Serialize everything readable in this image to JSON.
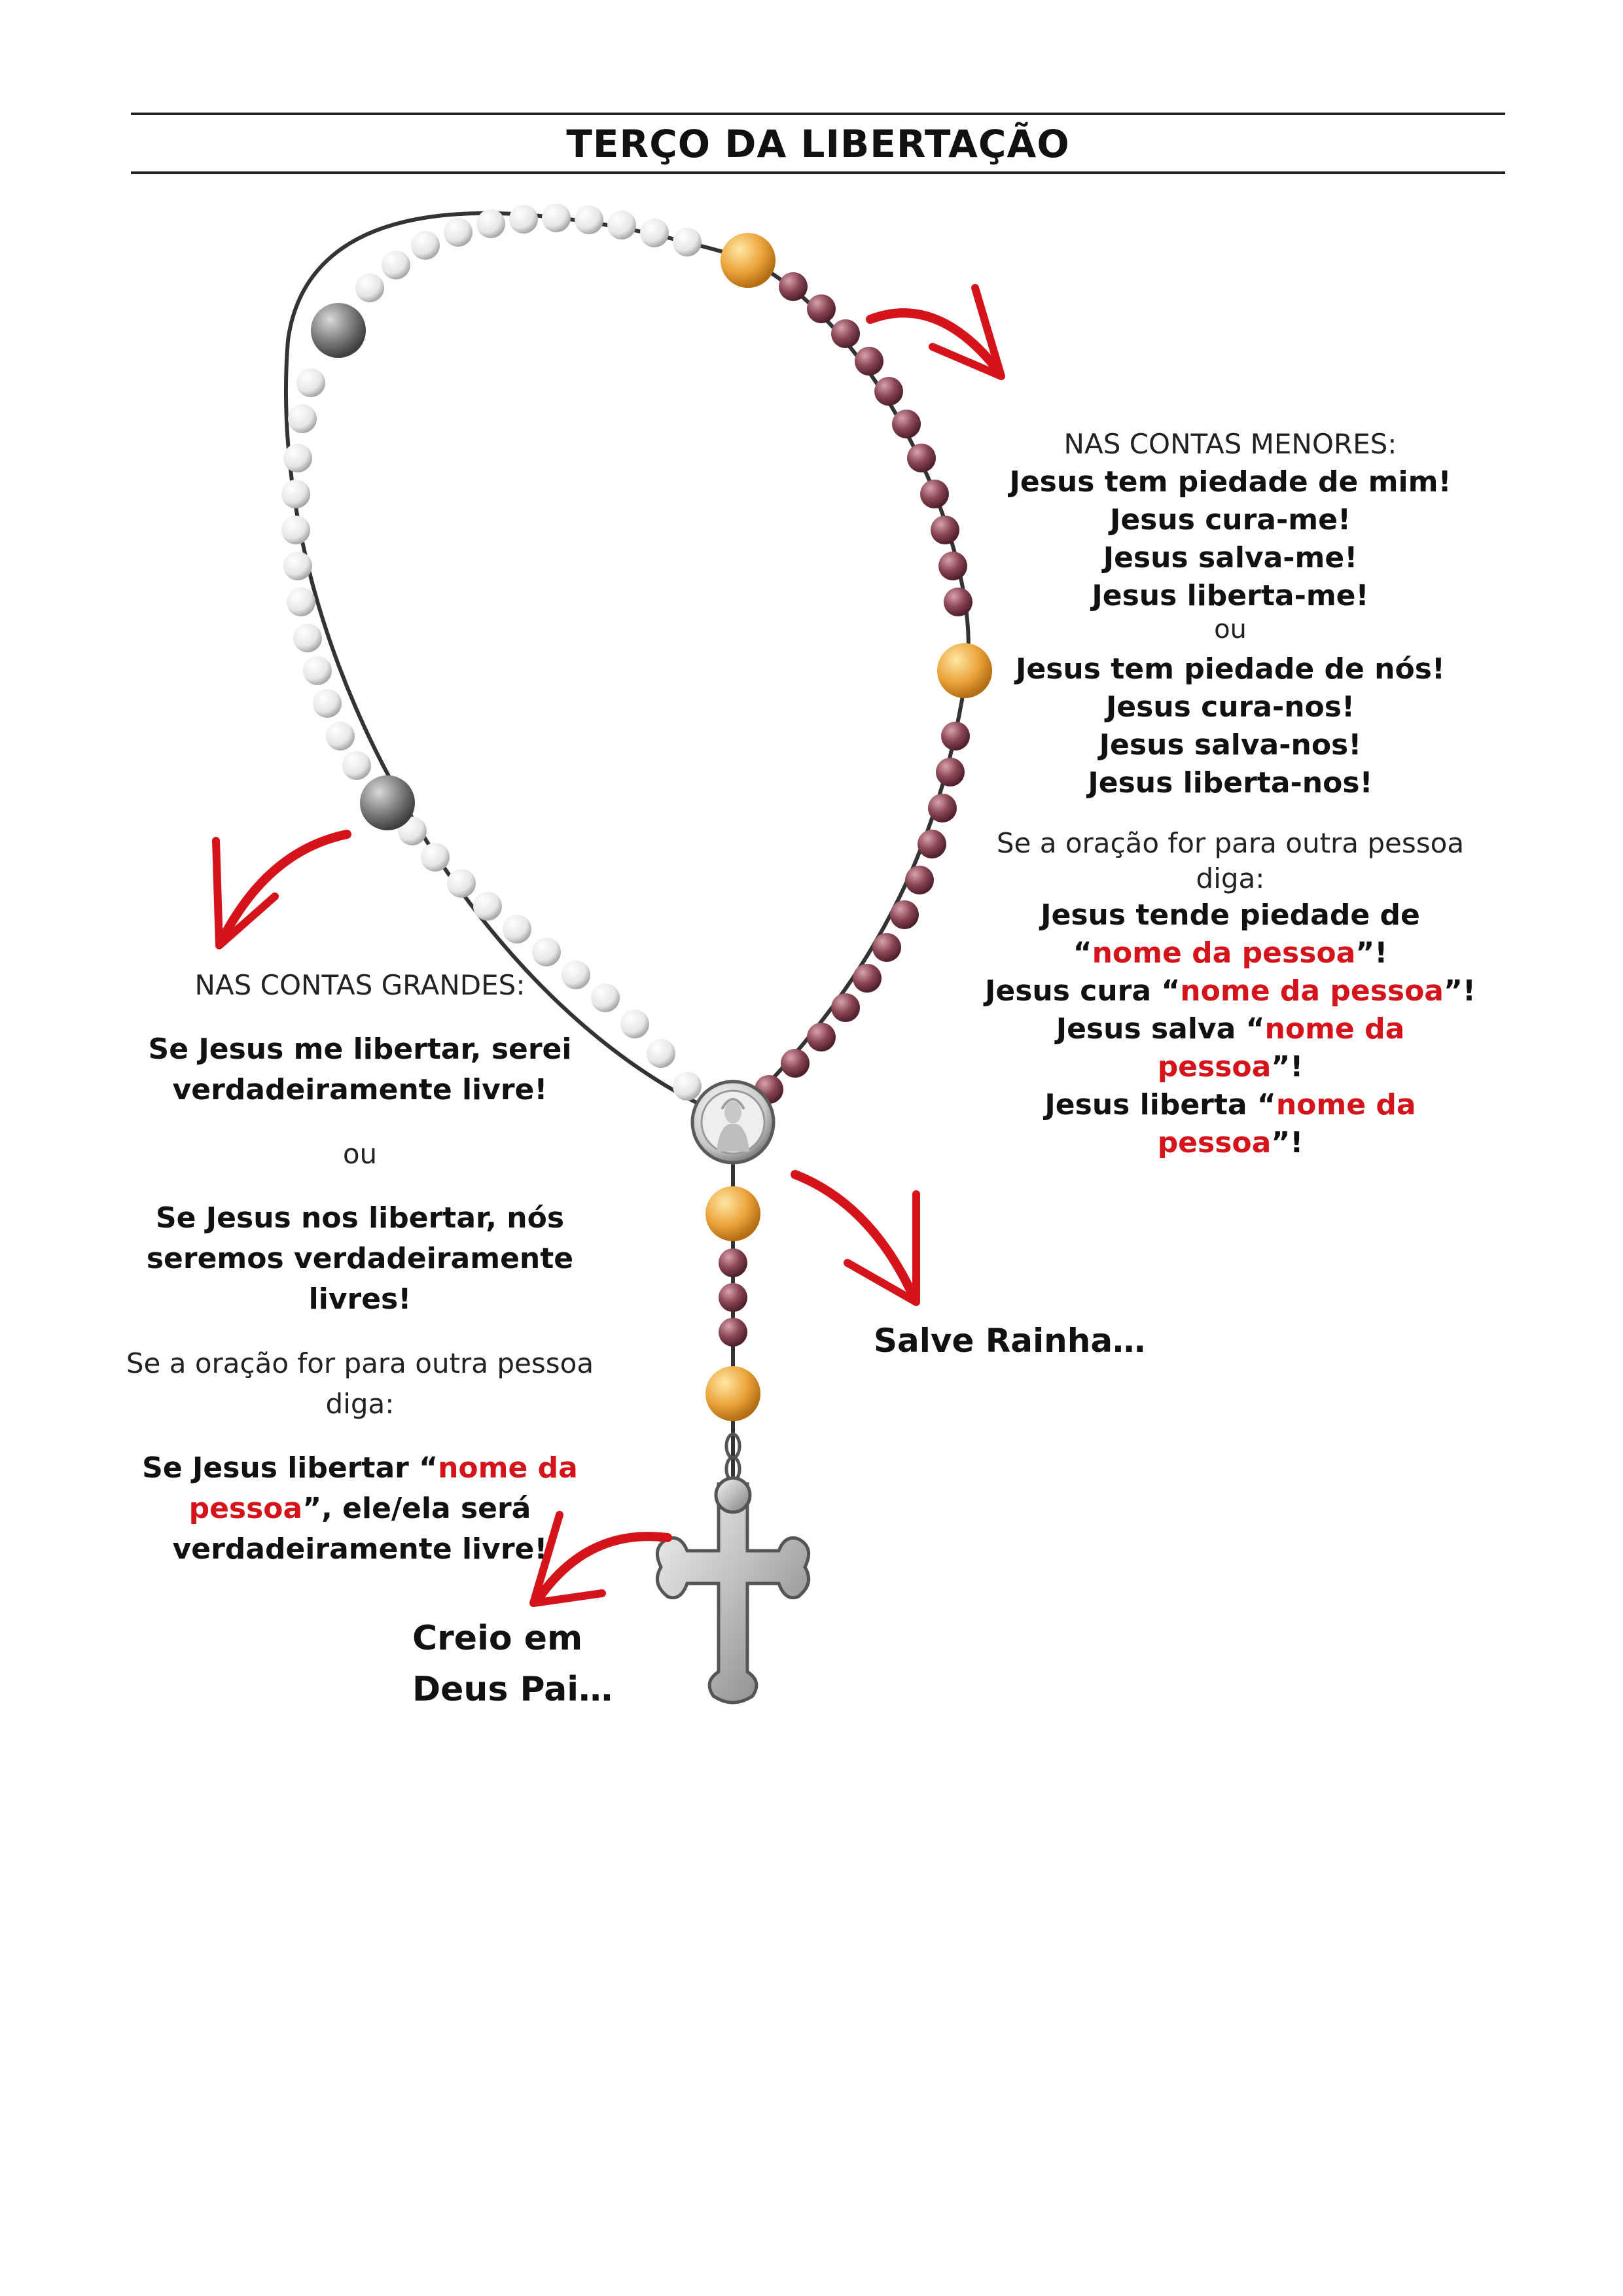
{
  "title": "TERÇO DA LIBERTAÇÃO",
  "colors": {
    "accent_red": "#d5131a",
    "white_bead": "#f2f2f2",
    "gray_bead": "#7d7d7d",
    "gold_bead": "#e9a23a",
    "maroon_bead": "#8a4654",
    "silver": "#b8b8b8"
  },
  "small_beads": {
    "heading": "NAS CONTAS MENORES:",
    "first_person": [
      "Jesus tem piedade de mim!",
      "Jesus cura-me!",
      "Jesus salva-me!",
      "Jesus liberta-me!"
    ],
    "or": "ou",
    "plural": [
      "Jesus tem piedade de nós!",
      "Jesus cura-nos!",
      "Jesus salva-nos!",
      "Jesus liberta-nos!"
    ],
    "other_intro": "Se a oração for para outra pessoa diga:",
    "other": {
      "l1_pre": "Jesus tende piedade de “",
      "name": "nome da pessoa",
      "l1_post": "”!",
      "l2_pre": "Jesus cura “",
      "l3_pre": "Jesus salva “",
      "l4_pre": "Jesus liberta “",
      "post": "”!"
    }
  },
  "large_beads": {
    "heading": "NAS CONTAS GRANDES:",
    "first_person": "Se Jesus me libertar, serei verdadeiramente livre!",
    "or": "ou",
    "plural": "Se Jesus nos libertar, nós seremos verdadeiramente livres!",
    "other_intro": "Se a oração for para outra pessoa diga:",
    "other_pre": "Se Jesus libertar “",
    "name": "nome da pessoa",
    "other_post": "”, ele/ela será verdadeiramente livre!"
  },
  "salve": "Salve Rainha…",
  "creio": {
    "line1": "Creio em",
    "line2": "Deus Pai…"
  },
  "icons": [
    "red-arrow-icon",
    "cross-icon",
    "medal-icon"
  ]
}
